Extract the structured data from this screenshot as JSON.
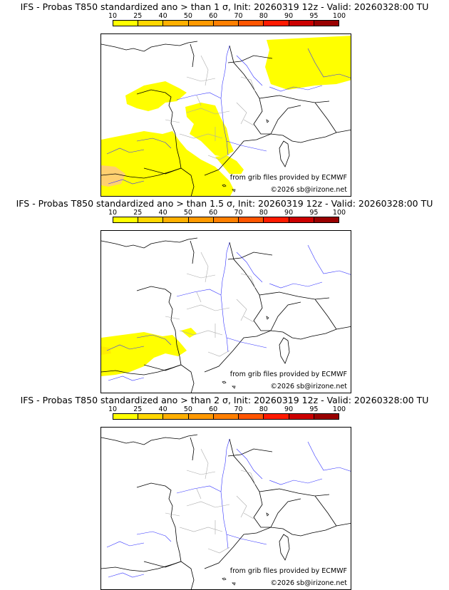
{
  "scale": {
    "labels": [
      "10",
      "25",
      "40",
      "50",
      "60",
      "70",
      "80",
      "90",
      "95",
      "100"
    ],
    "colors": [
      "#ffff00",
      "#ffd700",
      "#ffb000",
      "#ff9900",
      "#ff7f00",
      "#ff5500",
      "#ff1a00",
      "#cc0000",
      "#990000",
      "#660000"
    ]
  },
  "panels": [
    {
      "title": "IFS - Probas T850  standardized ano > than 1 σ, Init: 20260319 12z - Valid: 20260328:00 TU",
      "threshold_sigma": 1
    },
    {
      "title": "IFS - Probas T850  standardized ano > than 1.5 σ, Init: 20260319 12z - Valid: 20260328:00 TU",
      "threshold_sigma": 1.5
    },
    {
      "title": "IFS - Probas T850  standardized ano > than 2 σ, Init: 20260319 12z - Valid: 20260328:00 TU",
      "threshold_sigma": 2
    }
  ],
  "credits": {
    "source": "from grib files provided by ECMWF",
    "copyright": "©2026 sb@irizone.net"
  },
  "colors": {
    "probability_low": "#ffff00",
    "probability_mid": "#ffb000",
    "coast": "#000000",
    "rivers": "#3333ff",
    "borders": "#aaaaaa"
  }
}
